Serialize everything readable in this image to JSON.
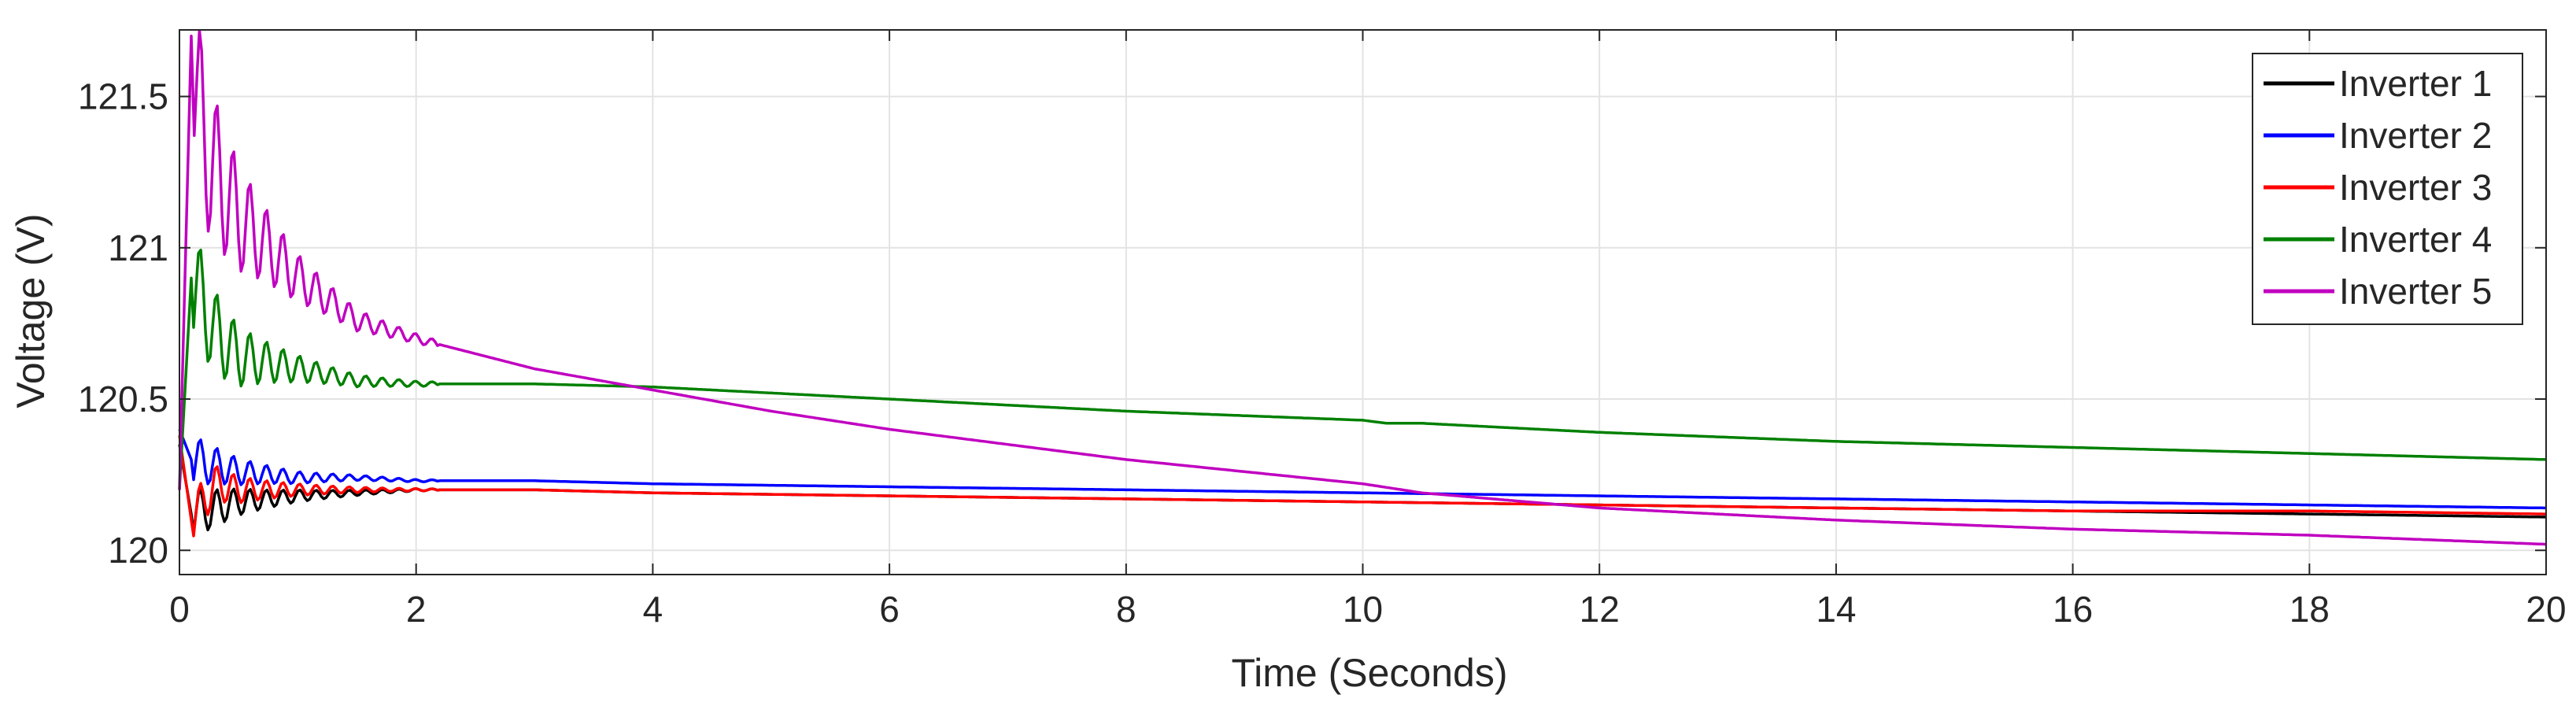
{
  "chart_data": {
    "type": "line",
    "xlabel": "Time (Seconds)",
    "ylabel": "Voltage (V)",
    "xlim": [
      0,
      20
    ],
    "ylim": [
      119.92,
      121.72
    ],
    "xticks": [
      "0",
      "2",
      "4",
      "6",
      "8",
      "10",
      "12",
      "14",
      "16",
      "18",
      "20"
    ],
    "yticks": [
      "120",
      "120.5",
      "121",
      "121.5"
    ],
    "grid": true,
    "legend_position": "top-right",
    "series": [
      {
        "name": "Inverter 1",
        "color": "#000000",
        "x": [
          0,
          0.1,
          0.3,
          0.5,
          1.0,
          1.5,
          2,
          3,
          4,
          6,
          8,
          10,
          12,
          14,
          16,
          18,
          20
        ],
        "y": [
          120.35,
          120.12,
          120.14,
          120.16,
          120.18,
          120.19,
          120.2,
          120.2,
          120.19,
          120.18,
          120.17,
          120.16,
          120.15,
          120.14,
          120.13,
          120.12,
          120.11
        ]
      },
      {
        "name": "Inverter 2",
        "color": "#0000ff",
        "x": [
          0,
          0.1,
          0.3,
          0.5,
          1.0,
          1.5,
          2,
          3,
          4,
          6,
          8,
          10,
          12,
          14,
          16,
          18,
          20
        ],
        "y": [
          120.4,
          120.3,
          120.28,
          120.26,
          120.24,
          120.24,
          120.23,
          120.23,
          120.22,
          120.21,
          120.2,
          120.19,
          120.18,
          120.17,
          120.16,
          120.15,
          120.14
        ]
      },
      {
        "name": "Inverter 3",
        "color": "#ff0000",
        "x": [
          0,
          0.1,
          0.3,
          0.5,
          1.0,
          1.5,
          2,
          3,
          4,
          6,
          8,
          10,
          12,
          14,
          16,
          18,
          20
        ],
        "y": [
          120.38,
          120.1,
          120.22,
          120.2,
          120.2,
          120.2,
          120.2,
          120.2,
          120.19,
          120.18,
          120.17,
          120.16,
          120.15,
          120.14,
          120.13,
          120.13,
          120.12
        ]
      },
      {
        "name": "Inverter 4",
        "color": "#008000",
        "x": [
          0,
          0.1,
          0.3,
          0.5,
          1.0,
          1.5,
          2,
          3,
          4,
          6,
          8,
          10,
          10.2,
          10.5,
          12,
          14,
          16,
          18,
          20
        ],
        "y": [
          120.2,
          120.9,
          120.72,
          120.64,
          120.6,
          120.56,
          120.55,
          120.55,
          120.54,
          120.5,
          120.46,
          120.43,
          120.42,
          120.42,
          120.39,
          120.36,
          120.34,
          120.32,
          120.3
        ]
      },
      {
        "name": "Inverter 5",
        "color": "#c000c0",
        "x": [
          0,
          0.1,
          0.15,
          0.3,
          0.5,
          1.0,
          1.5,
          2,
          3,
          4,
          5,
          6,
          8,
          10,
          10.5,
          12,
          14,
          16,
          18,
          20
        ],
        "y": [
          120.2,
          121.7,
          121.45,
          121.25,
          121.1,
          120.9,
          120.76,
          120.7,
          120.6,
          120.53,
          120.46,
          120.4,
          120.3,
          120.22,
          120.19,
          120.14,
          120.1,
          120.07,
          120.05,
          120.02
        ]
      }
    ]
  }
}
